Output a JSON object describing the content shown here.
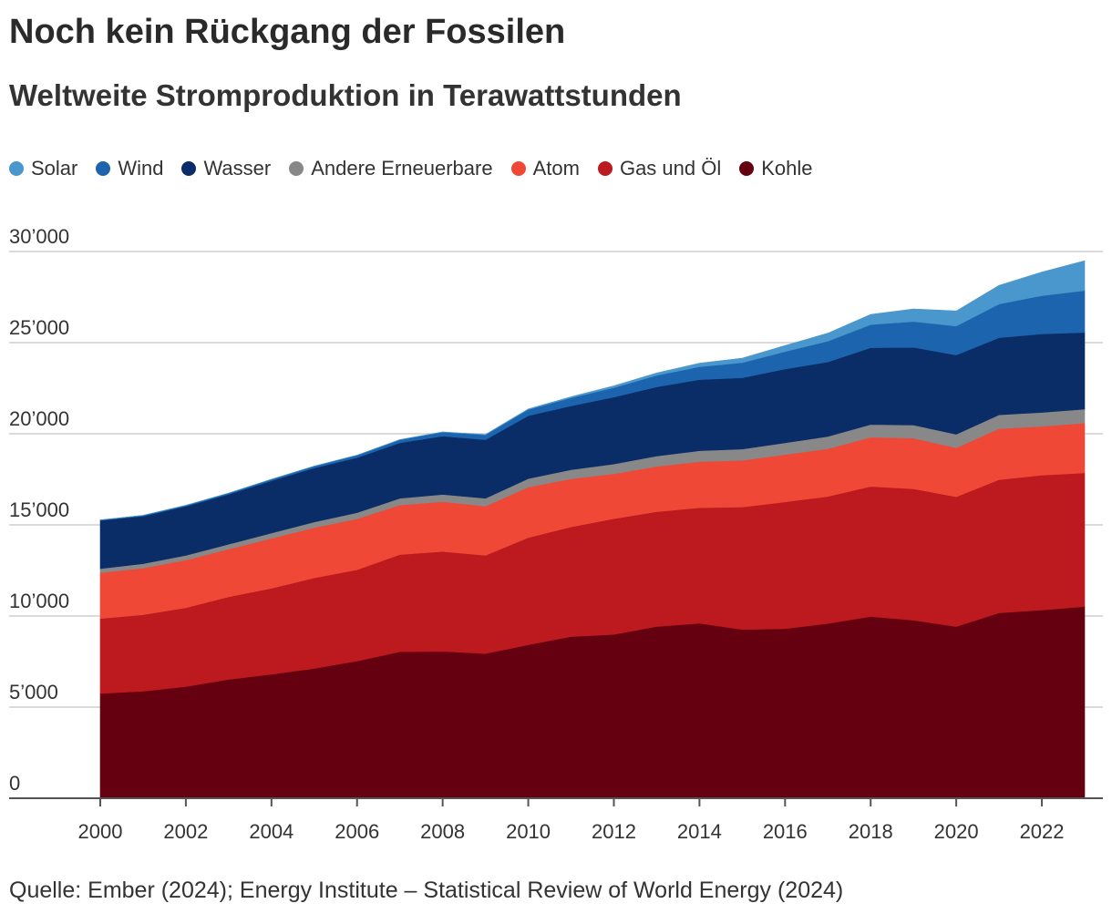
{
  "title": "Noch kein Rückgang der Fossilen",
  "subtitle": "Weltweite Stromproduktion in Terawattstunden",
  "source": "Quelle: Ember (2024); Energy Institute – Statistical Review of World Energy (2024)",
  "chart_data": {
    "type": "area",
    "stacked": true,
    "title": "Noch kein Rückgang der Fossilen",
    "subtitle": "Weltweite Stromproduktion in Terawattstunden",
    "xlabel": "",
    "ylabel": "",
    "ylim": [
      0,
      30000
    ],
    "xlim": [
      2000,
      2023
    ],
    "grid": true,
    "legend_position": "top-left",
    "x": [
      2000,
      2001,
      2002,
      2003,
      2004,
      2005,
      2006,
      2007,
      2008,
      2009,
      2010,
      2011,
      2012,
      2013,
      2014,
      2015,
      2016,
      2017,
      2018,
      2019,
      2020,
      2021,
      2022,
      2023
    ],
    "y_ticks": [
      {
        "value": 0,
        "label": "0"
      },
      {
        "value": 5000,
        "label": "5’000"
      },
      {
        "value": 10000,
        "label": "10’000"
      },
      {
        "value": 15000,
        "label": "15’000"
      },
      {
        "value": 20000,
        "label": "20’000"
      },
      {
        "value": 25000,
        "label": "25’000"
      },
      {
        "value": 30000,
        "label": "30’000"
      }
    ],
    "x_ticks": [
      {
        "value": 2000,
        "label": "2000"
      },
      {
        "value": 2002,
        "label": "2002"
      },
      {
        "value": 2004,
        "label": "2004"
      },
      {
        "value": 2006,
        "label": "2006"
      },
      {
        "value": 2008,
        "label": "2008"
      },
      {
        "value": 2010,
        "label": "2010"
      },
      {
        "value": 2012,
        "label": "2012"
      },
      {
        "value": 2014,
        "label": "2014"
      },
      {
        "value": 2016,
        "label": "2016"
      },
      {
        "value": 2018,
        "label": "2018"
      },
      {
        "value": 2020,
        "label": "2020"
      },
      {
        "value": 2022,
        "label": "2022"
      }
    ],
    "series": [
      {
        "name": "Kohle",
        "color": "#650010",
        "values": [
          5750,
          5870,
          6130,
          6520,
          6800,
          7120,
          7530,
          8040,
          8060,
          7940,
          8420,
          8870,
          8990,
          9420,
          9600,
          9260,
          9300,
          9590,
          9970,
          9770,
          9420,
          10170,
          10330,
          10520
        ]
      },
      {
        "name": "Gas und Öl",
        "color": "#bc1a1f",
        "values": [
          4110,
          4200,
          4320,
          4530,
          4720,
          4970,
          5010,
          5330,
          5480,
          5390,
          5880,
          6020,
          6350,
          6300,
          6340,
          6720,
          6960,
          6970,
          7140,
          7210,
          7120,
          7310,
          7400,
          7330
        ]
      },
      {
        "name": "Atom",
        "color": "#ef4836",
        "values": [
          2510,
          2560,
          2620,
          2620,
          2740,
          2760,
          2790,
          2720,
          2730,
          2700,
          2770,
          2640,
          2460,
          2490,
          2530,
          2560,
          2600,
          2620,
          2700,
          2780,
          2690,
          2800,
          2680,
          2740
        ]
      },
      {
        "name": "Andere Erneuerbare",
        "color": "#888888",
        "values": [
          230,
          240,
          260,
          270,
          290,
          310,
          340,
          370,
          400,
          430,
          470,
          500,
          540,
          570,
          600,
          620,
          640,
          670,
          700,
          720,
          740,
          760,
          760,
          760
        ]
      },
      {
        "name": "Wasser",
        "color": "#0a2d67",
        "values": [
          2640,
          2610,
          2690,
          2740,
          2870,
          2960,
          3020,
          3040,
          3200,
          3210,
          3450,
          3500,
          3670,
          3790,
          3900,
          3910,
          4050,
          4090,
          4210,
          4260,
          4350,
          4230,
          4310,
          4210
        ]
      },
      {
        "name": "Wind",
        "color": "#1c65ae",
        "values": [
          30,
          40,
          50,
          60,
          80,
          100,
          130,
          170,
          220,
          270,
          340,
          440,
          520,
          630,
          710,
          830,
          960,
          1140,
          1270,
          1420,
          1590,
          1850,
          2100,
          2300
        ]
      },
      {
        "name": "Solar",
        "color": "#4a97cd",
        "values": [
          1,
          2,
          2,
          3,
          4,
          5,
          6,
          8,
          12,
          20,
          32,
          62,
          98,
          134,
          190,
          250,
          330,
          440,
          560,
          690,
          830,
          1020,
          1290,
          1630
        ]
      }
    ],
    "legend_order": [
      "Solar",
      "Wind",
      "Wasser",
      "Andere Erneuerbare",
      "Atom",
      "Gas und Öl",
      "Kohle"
    ]
  }
}
